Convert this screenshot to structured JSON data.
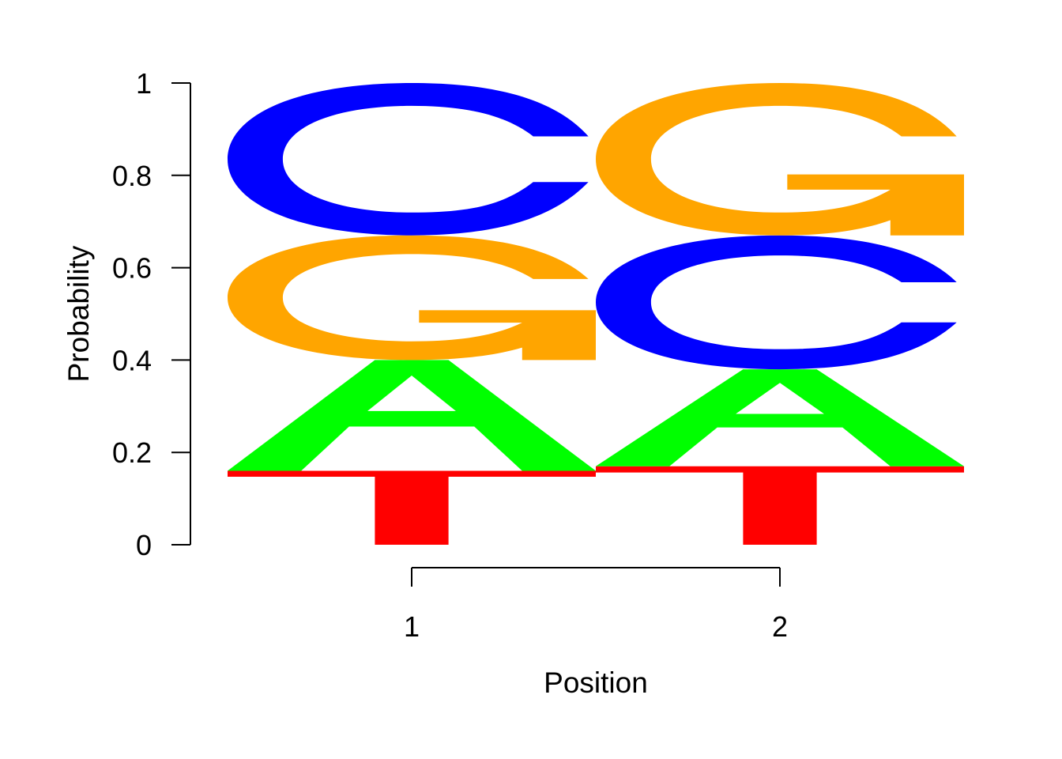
{
  "chart_data": {
    "type": "sequence-logo",
    "xlabel": "Position",
    "ylabel": "Probability",
    "ylim": [
      0,
      1
    ],
    "yticks": [
      "0",
      "0.2",
      "0.4",
      "0.6",
      "0.8",
      "1"
    ],
    "positions": [
      "1",
      "2"
    ],
    "colors": {
      "A": "#00ff00",
      "C": "#0000ff",
      "G": "#ffa500",
      "T": "#ff0000"
    },
    "stacks": [
      {
        "position": "1",
        "letters": [
          {
            "letter": "T",
            "prob": 0.16
          },
          {
            "letter": "A",
            "prob": 0.24
          },
          {
            "letter": "G",
            "prob": 0.27
          },
          {
            "letter": "C",
            "prob": 0.33
          }
        ]
      },
      {
        "position": "2",
        "letters": [
          {
            "letter": "T",
            "prob": 0.17
          },
          {
            "letter": "A",
            "prob": 0.21
          },
          {
            "letter": "C",
            "prob": 0.29
          },
          {
            "letter": "G",
            "prob": 0.33
          }
        ]
      }
    ]
  }
}
